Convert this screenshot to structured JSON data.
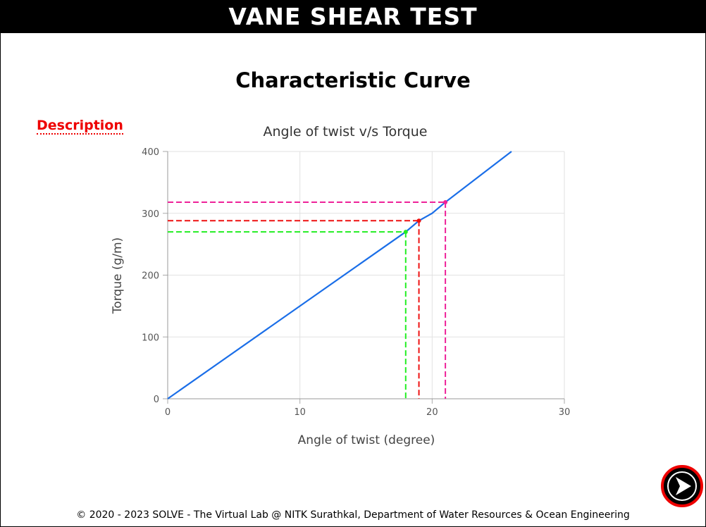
{
  "header": {
    "title": "VANE SHEAR TEST"
  },
  "heading": "Characteristic Curve",
  "description_link": "Description",
  "chart_data": {
    "type": "line",
    "title": "Angle of twist v/s Torque",
    "x_label": "Angle of twist (degree)",
    "y_label": "Torque (g/m)",
    "x": [
      0,
      18,
      19,
      20,
      21,
      26
    ],
    "values": [
      0,
      270,
      288,
      300,
      318,
      400
    ],
    "color": "#1a6ee8",
    "markers": [
      {
        "x": 18,
        "y": 270,
        "color": "#22ee22"
      },
      {
        "x": 19,
        "y": 288,
        "color": "#ee1111"
      },
      {
        "x": 21,
        "y": 318,
        "color": "#ee2299"
      }
    ],
    "xlim": [
      0,
      30
    ],
    "xticks": [
      0,
      10,
      20,
      30
    ],
    "ylim": [
      0,
      400
    ],
    "yticks": [
      0,
      100,
      200,
      300,
      400
    ],
    "grid": true
  },
  "footer": "© 2020 - 2023 SOLVE - The Virtual Lab @ NITK Surathkal, Department of Water Resources & Ocean Engineering"
}
